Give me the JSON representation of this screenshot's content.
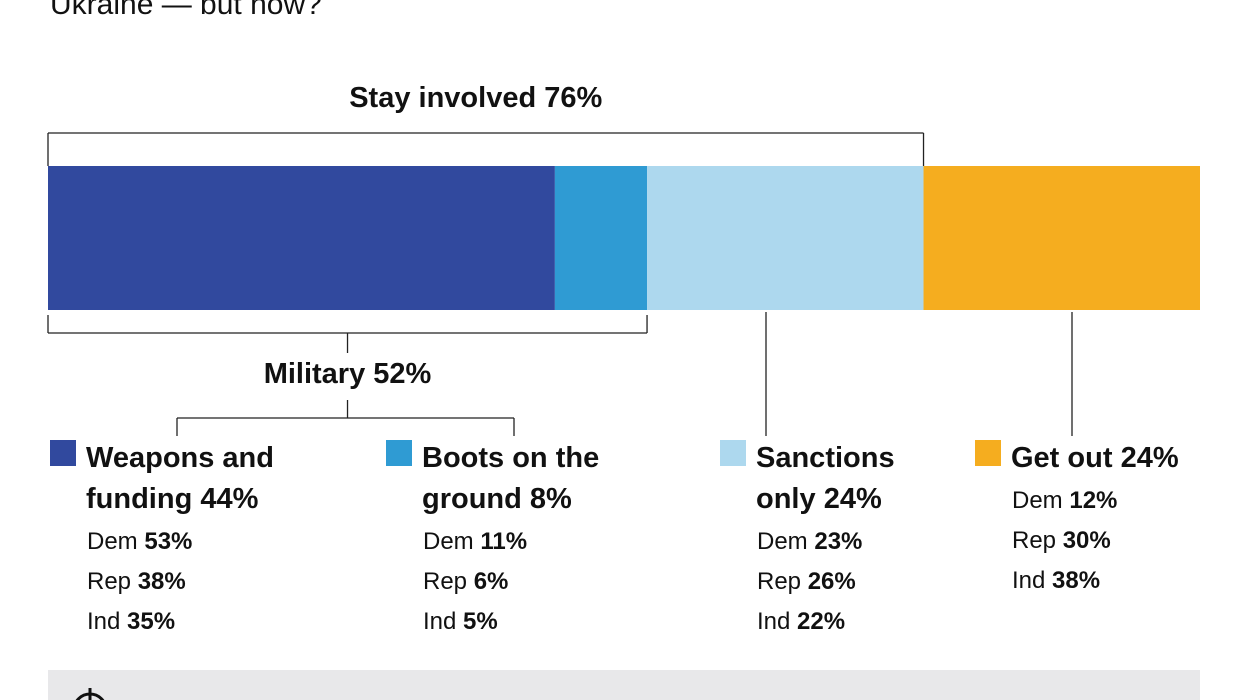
{
  "chart_data": {
    "type": "stacked-bar",
    "title": "Ukraine — but how?",
    "xlim": [
      0,
      100
    ],
    "series": [
      {
        "name": "Weapons and funding",
        "color": "#31499e",
        "values": [
          44
        ],
        "value_labels": [
          "44%"
        ],
        "breakdown": {
          "labels": [
            "Dem",
            "Rep",
            "Ind"
          ],
          "values": [
            53,
            38,
            35
          ],
          "value_labels": [
            "53%",
            "38%",
            "35%"
          ]
        }
      },
      {
        "name": "Boots on the ground",
        "color": "#2f9bd3",
        "values": [
          8
        ],
        "value_labels": [
          "8%"
        ],
        "breakdown": {
          "labels": [
            "Dem",
            "Rep",
            "Ind"
          ],
          "values": [
            11,
            6,
            5
          ],
          "value_labels": [
            "11%",
            "6%",
            "5%"
          ]
        }
      },
      {
        "name": "Sanctions only",
        "color": "#add8ee",
        "values": [
          24
        ],
        "value_labels": [
          "24%"
        ],
        "breakdown": {
          "labels": [
            "Dem",
            "Rep",
            "Ind"
          ],
          "values": [
            23,
            26,
            22
          ],
          "value_labels": [
            "23%",
            "26%",
            "22%"
          ]
        }
      },
      {
        "name": "Get out",
        "color": "#f5ad1f",
        "values": [
          24
        ],
        "value_labels": [
          "24%"
        ],
        "breakdown": {
          "labels": [
            "Dem",
            "Rep",
            "Ind"
          ],
          "values": [
            12,
            30,
            38
          ],
          "value_labels": [
            "12%",
            "30%",
            "38%"
          ]
        }
      }
    ],
    "groups": [
      {
        "name": "Stay involved",
        "value": 76,
        "value_label": "76%"
      },
      {
        "name": "Military",
        "value": 52,
        "value_label": "52%"
      }
    ]
  }
}
